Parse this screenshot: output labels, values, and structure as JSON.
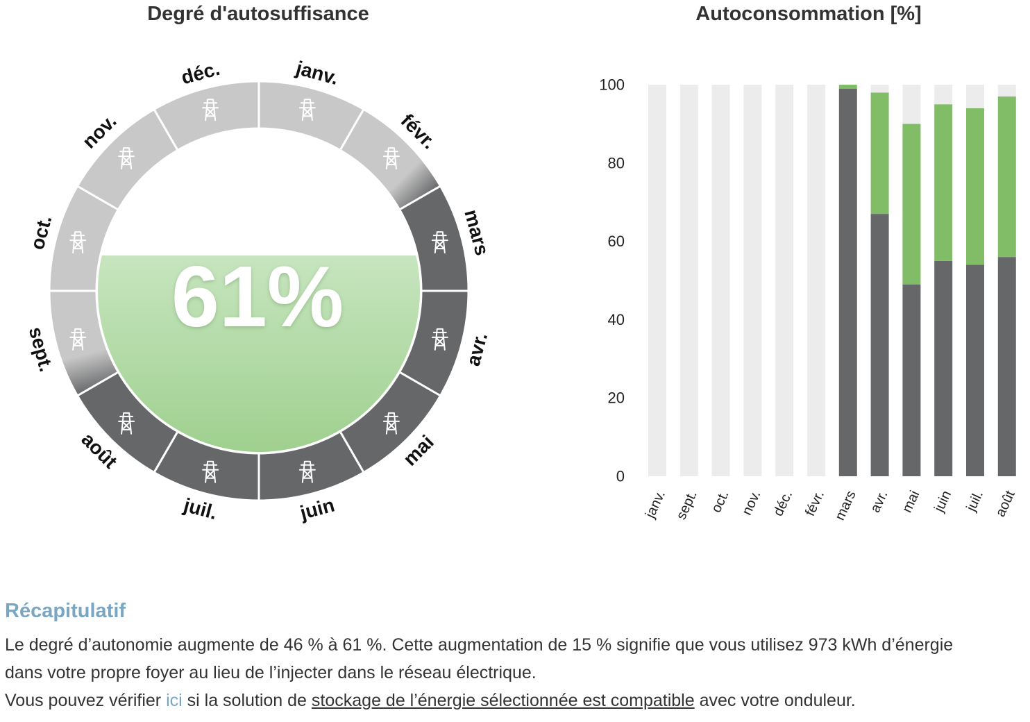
{
  "ring_chart": {
    "title": "Degré d'autosuffisance",
    "center_value": "61%",
    "fill_fraction": 0.61,
    "colors": {
      "grid_month": "#c8c8c8",
      "autonomous_month": "#666769",
      "fill_top": "#c7e5bf",
      "fill_bottom": "#9fd08f"
    },
    "icon": "power-pylon-icon",
    "segments": [
      {
        "label": "janv.",
        "state": "grid"
      },
      {
        "label": "févr.",
        "state": "transition"
      },
      {
        "label": "mars",
        "state": "autonomous"
      },
      {
        "label": "avr.",
        "state": "autonomous"
      },
      {
        "label": "mai",
        "state": "autonomous"
      },
      {
        "label": "juin",
        "state": "autonomous"
      },
      {
        "label": "juil.",
        "state": "autonomous"
      },
      {
        "label": "août",
        "state": "autonomous"
      },
      {
        "label": "sept.",
        "state": "transition"
      },
      {
        "label": "oct.",
        "state": "grid"
      },
      {
        "label": "nov.",
        "state": "grid"
      },
      {
        "label": "déc.",
        "state": "grid"
      }
    ]
  },
  "chart_data": {
    "type": "bar",
    "title": "Autoconsommation [%]",
    "categories": [
      "janv.",
      "sept.",
      "oct.",
      "nov.",
      "déc.",
      "févr.",
      "mars",
      "avr.",
      "mai",
      "juin",
      "juil.",
      "août"
    ],
    "ylim": [
      0,
      100
    ],
    "yticks": [
      "0",
      "20",
      "40",
      "60",
      "80",
      "100"
    ],
    "stacked": true,
    "series": [
      {
        "color": "#666769",
        "values": [
          0,
          0,
          0,
          0,
          0,
          0,
          99,
          67,
          49,
          55,
          54,
          56
        ]
      },
      {
        "color": "#80bd66",
        "values": [
          0,
          0,
          0,
          0,
          0,
          0,
          1,
          31,
          41,
          40,
          40,
          41
        ]
      },
      {
        "color": "#ececec",
        "values": [
          100,
          100,
          100,
          100,
          100,
          100,
          0,
          2,
          10,
          5,
          6,
          3
        ]
      }
    ]
  },
  "summary": {
    "title": "Récapitulatif",
    "line1": "Le degré d’autonomie augmente de 46 % à 61 %. Cette augmentation de 15 % signifie que vous utilisez 973 kWh d’énergie",
    "line2": "dans votre propre foyer au lieu de l’injecter dans le réseau électrique.",
    "line3_before": "Vous pouvez vérifier ",
    "line3_link": "ici",
    "line3_mid": " si la solution de ",
    "line3_underlined": "stockage de l’énergie sélectionnée est compatible",
    "line3_after": " avec votre onduleur."
  }
}
